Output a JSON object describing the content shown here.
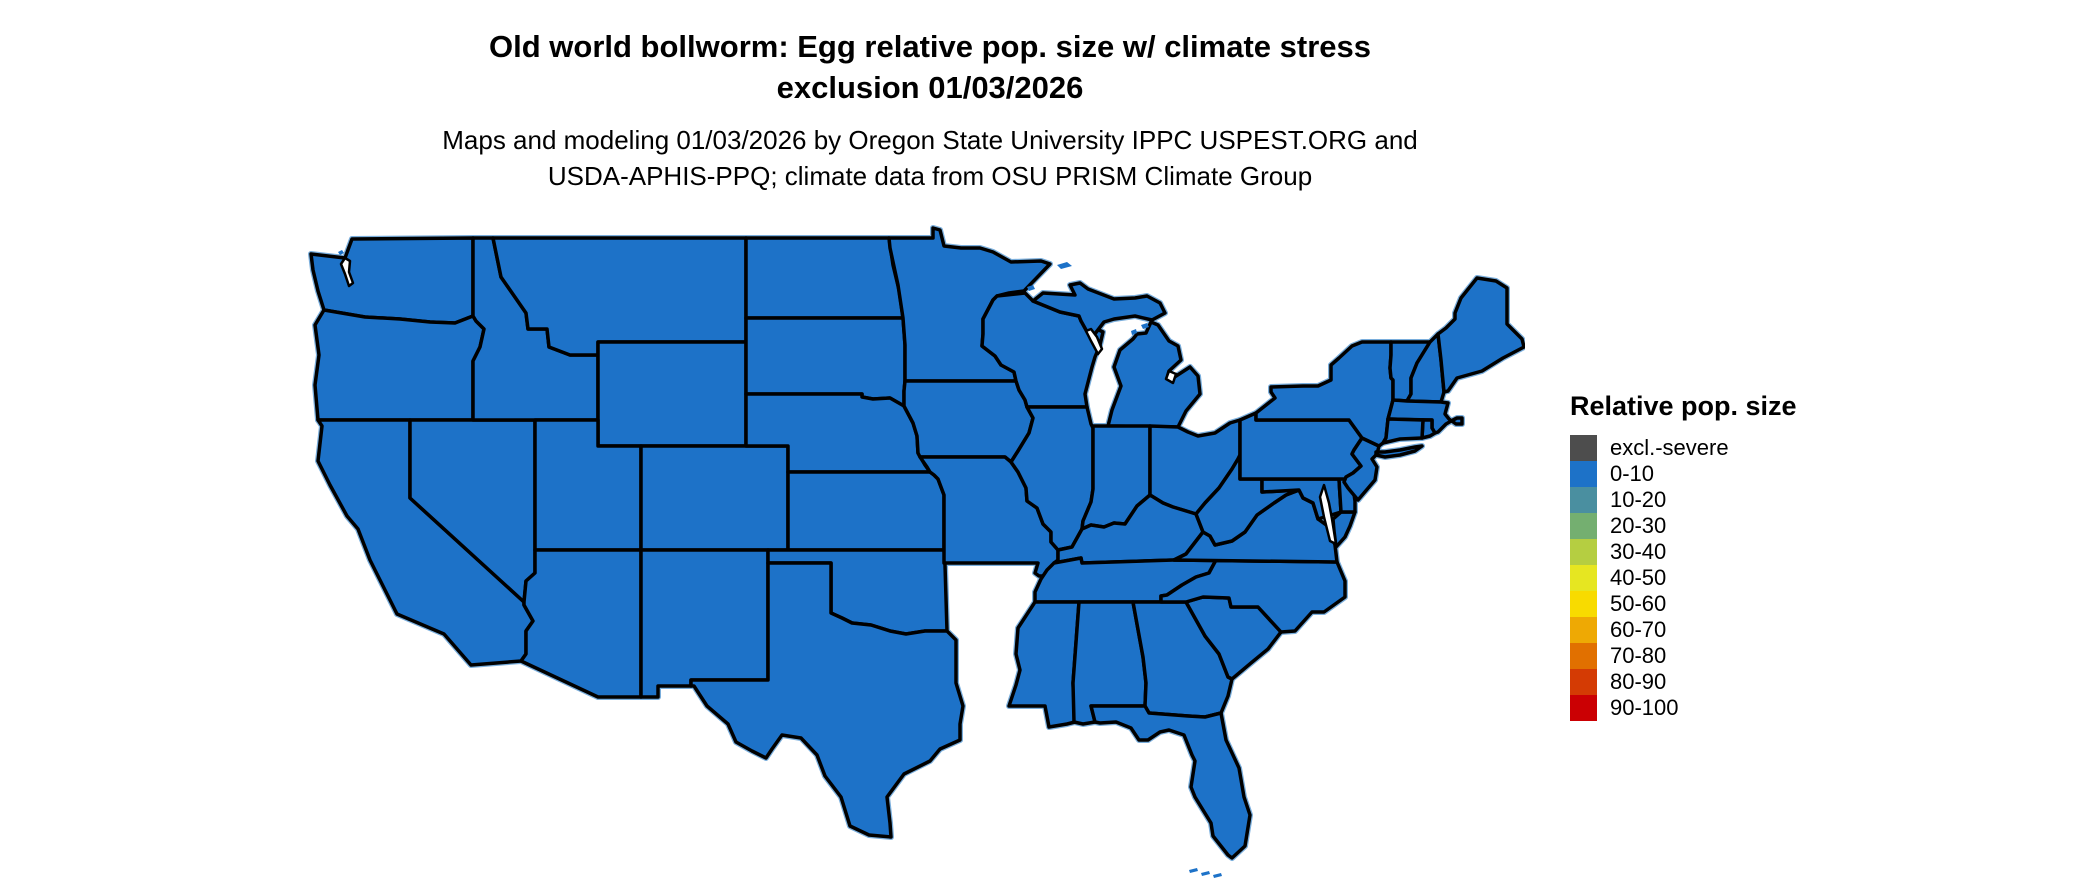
{
  "title": {
    "line1": "Old world bollworm: Egg relative pop. size w/ climate stress",
    "line2": "exclusion 01/03/2026"
  },
  "subtitle": {
    "line1": "Maps and modeling 01/03/2026 by Oregon State University IPPC USPEST.ORG and",
    "line2": "USDA-APHIS-PPQ; climate data from OSU PRISM Climate Group"
  },
  "legend": {
    "title": "Relative pop. size",
    "items": [
      {
        "label": "excl.-severe",
        "color": "#4D4D4D"
      },
      {
        "label": "0-10",
        "color": "#1D72C8"
      },
      {
        "label": "10-20",
        "color": "#4A8FA0"
      },
      {
        "label": "20-30",
        "color": "#74AF70"
      },
      {
        "label": "30-40",
        "color": "#B5CE41"
      },
      {
        "label": "40-50",
        "color": "#E6E621"
      },
      {
        "label": "50-60",
        "color": "#F8DB00"
      },
      {
        "label": "60-70",
        "color": "#EEA904"
      },
      {
        "label": "70-80",
        "color": "#E17000"
      },
      {
        "label": "80-90",
        "color": "#D43B04"
      },
      {
        "label": "90-100",
        "color": "#CB0003"
      }
    ]
  },
  "map": {
    "land_color": "#1D72C8",
    "border_color": "#000000",
    "water_color": "#FFFFFF",
    "coast_fringe_color": "#7AAEDC",
    "land_class": "0-10"
  },
  "chart_data": {
    "type": "choropleth_map",
    "region": "Contiguous United States (state-level map)",
    "variable": "Egg relative pop. size with climate stress exclusion",
    "date_shown": "01/03/2026",
    "classes": [
      "excl.-severe",
      "0-10",
      "10-20",
      "20-30",
      "30-40",
      "40-50",
      "50-60",
      "60-70",
      "70-80",
      "80-90",
      "90-100"
    ],
    "class_colors": [
      "#4D4D4D",
      "#1D72C8",
      "#4A8FA0",
      "#74AF70",
      "#B5CE41",
      "#E6E621",
      "#F8DB00",
      "#EEA904",
      "#E17000",
      "#D43B04",
      "#CB0003"
    ],
    "observed_values": "All contiguous US states are rendered in the 0-10 class (uniform blue)",
    "legend_position": "right",
    "grid": false
  }
}
